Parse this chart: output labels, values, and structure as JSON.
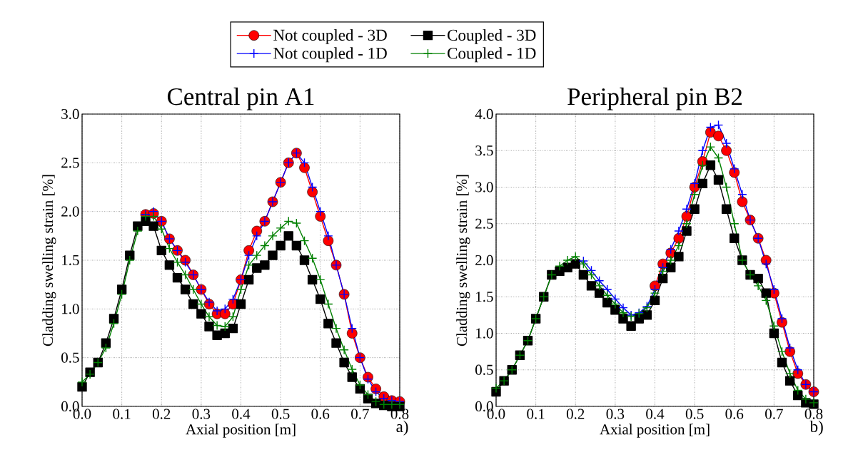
{
  "chart_data": [
    {
      "type": "line",
      "title": "Central pin A1",
      "xlabel": "Axial position [m]",
      "ylabel": "Cladding swelling strain [%]",
      "annotations": [
        "a)"
      ],
      "legend": "top",
      "grid": true,
      "line_style": "solid",
      "xlim": [
        0,
        0.8
      ],
      "ylim": [
        0,
        3
      ],
      "xticks": [
        {
          "value": 0,
          "label": "0.0"
        },
        {
          "value": 0.1,
          "label": "0.1"
        },
        {
          "value": 0.2,
          "label": "0.2"
        },
        {
          "value": 0.3,
          "label": "0.3"
        },
        {
          "value": 0.4,
          "label": "0.4"
        },
        {
          "value": 0.5,
          "label": "0.5"
        },
        {
          "value": 0.6,
          "label": "0.6"
        },
        {
          "value": 0.7,
          "label": "0.7"
        },
        {
          "value": 0.8,
          "label": "0.8"
        }
      ],
      "yticks": [
        {
          "value": 0,
          "label": "0.0"
        },
        {
          "value": 0.5,
          "label": "0.5"
        },
        {
          "value": 1,
          "label": "1.0"
        },
        {
          "value": 1.5,
          "label": "1.5"
        },
        {
          "value": 2,
          "label": "2.0"
        },
        {
          "value": 2.5,
          "label": "2.5"
        },
        {
          "value": 3,
          "label": "3.0"
        }
      ],
      "x": [
        0,
        0.02,
        0.04,
        0.06,
        0.08,
        0.1,
        0.12,
        0.14,
        0.16,
        0.18,
        0.2,
        0.22,
        0.24,
        0.26,
        0.28,
        0.3,
        0.32,
        0.34,
        0.36,
        0.38,
        0.4,
        0.42,
        0.44,
        0.46,
        0.48,
        0.5,
        0.52,
        0.54,
        0.56,
        0.58,
        0.6,
        0.62,
        0.64,
        0.66,
        0.68,
        0.7,
        0.72,
        0.74,
        0.76,
        0.78,
        0.8
      ],
      "series": [
        {
          "name": "Not coupled - 3D",
          "color": "#ff0000",
          "marker": "circle",
          "values": [
            null,
            null,
            null,
            null,
            null,
            null,
            null,
            null,
            1.97,
            1.98,
            1.9,
            1.72,
            1.6,
            1.5,
            1.35,
            1.2,
            1.05,
            0.95,
            0.95,
            1.05,
            1.3,
            1.6,
            1.8,
            1.9,
            2.1,
            2.3,
            2.5,
            2.6,
            2.45,
            2.2,
            1.95,
            1.7,
            1.45,
            1.15,
            0.75,
            0.5,
            0.3,
            0.18,
            0.1,
            0.06,
            0.05
          ]
        },
        {
          "name": "Coupled - 3D",
          "color": "#000000",
          "marker": "square",
          "values": [
            0.2,
            0.35,
            0.45,
            0.65,
            0.9,
            1.2,
            1.55,
            1.85,
            1.9,
            1.85,
            1.6,
            1.45,
            1.32,
            1.2,
            1.05,
            0.95,
            0.82,
            0.73,
            0.75,
            0.8,
            1.05,
            1.3,
            1.42,
            1.45,
            1.55,
            1.65,
            1.75,
            1.65,
            1.5,
            1.3,
            1.1,
            0.85,
            0.65,
            0.45,
            0.3,
            0.18,
            0.08,
            0.03,
            0.01,
            0.0,
            0.0
          ]
        },
        {
          "name": "Not coupled - 1D",
          "color": "#0000ff",
          "marker": "cross",
          "values": [
            null,
            null,
            null,
            null,
            null,
            null,
            null,
            null,
            1.97,
            2.0,
            1.9,
            1.72,
            1.6,
            1.48,
            1.35,
            1.2,
            1.07,
            0.98,
            1.0,
            1.1,
            1.3,
            1.55,
            1.75,
            1.9,
            2.1,
            2.3,
            2.5,
            2.6,
            2.5,
            2.25,
            2.0,
            1.75,
            1.45,
            1.15,
            0.8,
            0.5,
            0.28,
            0.15,
            0.08,
            0.06,
            0.05
          ]
        },
        {
          "name": "Coupled - 1D",
          "color": "#008000",
          "marker": "cross",
          "values": [
            0.25,
            0.33,
            0.45,
            0.6,
            0.85,
            1.15,
            1.5,
            1.8,
            1.95,
            1.95,
            1.82,
            1.62,
            1.48,
            1.35,
            1.2,
            1.05,
            0.92,
            0.83,
            0.82,
            0.92,
            1.2,
            1.45,
            1.55,
            1.65,
            1.75,
            1.83,
            1.9,
            1.88,
            1.7,
            1.52,
            1.3,
            1.05,
            0.8,
            0.58,
            0.38,
            0.22,
            0.12,
            0.05,
            0.02,
            0.02,
            0.02
          ]
        }
      ]
    },
    {
      "type": "line",
      "title": "Peripheral pin B2",
      "xlabel": "Axial position [m]",
      "ylabel": "Cladding swelling strain [%]",
      "annotations": [
        "b)"
      ],
      "grid": true,
      "line_style": "solid",
      "xlim": [
        0,
        0.8
      ],
      "ylim": [
        0,
        4
      ],
      "xticks": [
        {
          "value": 0,
          "label": "0.0"
        },
        {
          "value": 0.1,
          "label": "0.1"
        },
        {
          "value": 0.2,
          "label": "0.2"
        },
        {
          "value": 0.3,
          "label": "0.3"
        },
        {
          "value": 0.4,
          "label": "0.4"
        },
        {
          "value": 0.5,
          "label": "0.5"
        },
        {
          "value": 0.6,
          "label": "0.6"
        },
        {
          "value": 0.7,
          "label": "0.7"
        },
        {
          "value": 0.8,
          "label": "0.8"
        }
      ],
      "yticks": [
        {
          "value": 0,
          "label": "0.0"
        },
        {
          "value": 0.5,
          "label": "0.5"
        },
        {
          "value": 1,
          "label": "1.0"
        },
        {
          "value": 1.5,
          "label": "1.5"
        },
        {
          "value": 2,
          "label": "2.0"
        },
        {
          "value": 2.5,
          "label": "2.5"
        },
        {
          "value": 3,
          "label": "3.0"
        },
        {
          "value": 3.5,
          "label": "3.5"
        },
        {
          "value": 4,
          "label": "4.0"
        }
      ],
      "x": [
        0,
        0.02,
        0.04,
        0.06,
        0.08,
        0.1,
        0.12,
        0.14,
        0.16,
        0.18,
        0.2,
        0.22,
        0.24,
        0.26,
        0.28,
        0.3,
        0.32,
        0.34,
        0.36,
        0.38,
        0.4,
        0.42,
        0.44,
        0.46,
        0.48,
        0.5,
        0.52,
        0.54,
        0.56,
        0.58,
        0.6,
        0.62,
        0.64,
        0.66,
        0.68,
        0.7,
        0.72,
        0.74,
        0.76,
        0.78,
        0.8
      ],
      "series": [
        {
          "color": "#ff0000",
          "marker": "circle",
          "values": [
            null,
            null,
            null,
            null,
            null,
            null,
            null,
            null,
            null,
            null,
            null,
            null,
            null,
            null,
            null,
            null,
            null,
            null,
            null,
            null,
            1.65,
            1.95,
            2.1,
            2.3,
            2.6,
            3.0,
            3.35,
            3.75,
            3.7,
            3.5,
            3.2,
            2.8,
            2.55,
            2.3,
            2.0,
            1.55,
            1.15,
            0.75,
            0.45,
            0.3,
            0.2
          ]
        },
        {
          "color": "#000000",
          "marker": "square",
          "values": [
            0.2,
            0.35,
            0.5,
            0.7,
            0.9,
            1.2,
            1.5,
            1.8,
            1.85,
            1.9,
            1.95,
            1.8,
            1.65,
            1.55,
            1.42,
            1.32,
            1.2,
            1.1,
            1.2,
            1.25,
            1.45,
            1.75,
            1.9,
            2.05,
            2.4,
            2.7,
            3.05,
            3.3,
            3.1,
            2.7,
            2.3,
            2.0,
            1.8,
            1.75,
            1.55,
            1.0,
            0.6,
            0.35,
            0.15,
            0.05,
            0.03
          ]
        },
        {
          "color": "#0000ff",
          "marker": "cross",
          "values": [
            null,
            null,
            null,
            null,
            null,
            null,
            null,
            null,
            null,
            null,
            null,
            1.99,
            1.86,
            1.72,
            1.6,
            1.47,
            1.35,
            1.25,
            1.28,
            1.37,
            1.6,
            1.9,
            2.15,
            2.4,
            2.7,
            3.05,
            3.5,
            3.82,
            3.85,
            3.6,
            3.25,
            2.9,
            2.55,
            2.3,
            1.95,
            1.6,
            1.2,
            0.8,
            0.5,
            0.3,
            0.2
          ]
        },
        {
          "color": "#008000",
          "marker": "cross",
          "values": [
            0.25,
            0.35,
            0.5,
            0.7,
            0.9,
            1.2,
            1.5,
            1.8,
            1.92,
            2.0,
            2.05,
            1.95,
            1.8,
            1.65,
            1.52,
            1.4,
            1.28,
            1.23,
            1.27,
            1.35,
            1.55,
            1.85,
            2.0,
            2.2,
            2.5,
            2.9,
            3.3,
            3.55,
            3.4,
            3.0,
            2.5,
            2.0,
            1.8,
            1.65,
            1.45,
            1.1,
            0.75,
            0.45,
            0.22,
            0.1,
            0.05
          ]
        }
      ]
    }
  ]
}
